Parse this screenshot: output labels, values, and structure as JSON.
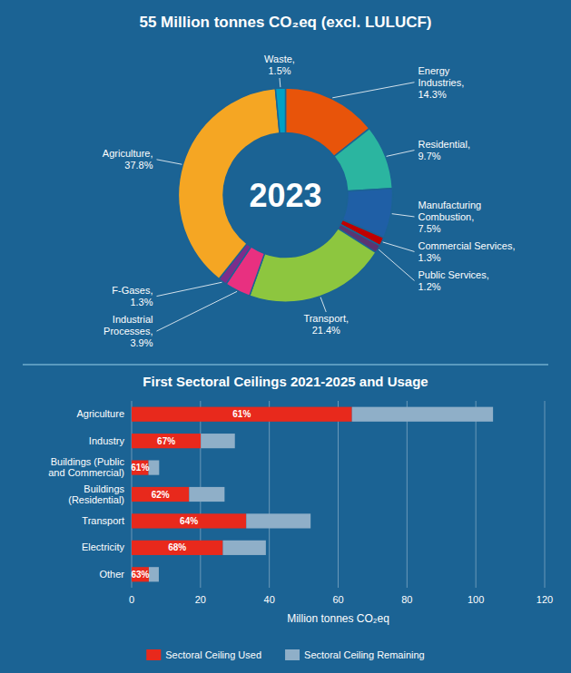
{
  "chart_data": [
    {
      "type": "pie",
      "title": "55 Million tonnes CO₂eq (excl. LULUCF)",
      "annotations": [
        "2023"
      ],
      "categories": [
        "Energy\nIndustries,\n14.3%",
        "Residential,\n9.7%",
        "Manufacturing\nCombustion,\n7.5%",
        "Commercial Services,\n1.3%",
        "Public Services,\n1.2%",
        "Transport,\n21.4%",
        "Industrial\nProcesses,\n3.9%",
        "F-Gases,\n1.3%",
        "Agriculture,\n37.8%",
        "Waste,\n1.5%"
      ],
      "values": [
        14.3,
        9.7,
        7.5,
        1.3,
        1.2,
        21.4,
        3.9,
        1.3,
        37.8,
        1.5
      ],
      "colors": [
        "#e8540a",
        "#2bb5a0",
        "#1f5fa6",
        "#c00000",
        "#5a3472",
        "#8dc63f",
        "#e83080",
        "#7b2d8b",
        "#f5a623",
        "#00a0c6"
      ]
    },
    {
      "type": "bar",
      "title": "First Sectoral Ceilings 2021-2025 and Usage",
      "orientation": "horizontal",
      "stacked": true,
      "categories": [
        "Agriculture",
        "Industry",
        "Buildings (Public\nand Commercial)",
        "Buildings\n(Residential)",
        "Transport",
        "Electricity",
        "Other"
      ],
      "series": [
        {
          "name": "Sectoral Ceiling Used",
          "color": "#e8291c",
          "values": [
            64.0,
            20.1,
            4.9,
            16.7,
            33.3,
            26.5,
            5.0
          ]
        },
        {
          "name": "Sectoral Ceiling Remaining",
          "color": "#8fafc8",
          "values": [
            41.0,
            9.9,
            3.1,
            10.3,
            18.7,
            12.5,
            2.9
          ]
        }
      ],
      "annotations": [
        "61%",
        "67%",
        "61%",
        "62%",
        "64%",
        "68%",
        "63%"
      ],
      "x_label": "Million tonnes CO₂eq",
      "xlim": [
        0,
        120
      ],
      "xticks": [
        0,
        20,
        40,
        60,
        80,
        100,
        120
      ],
      "grid": true,
      "legend": "bottom"
    }
  ]
}
